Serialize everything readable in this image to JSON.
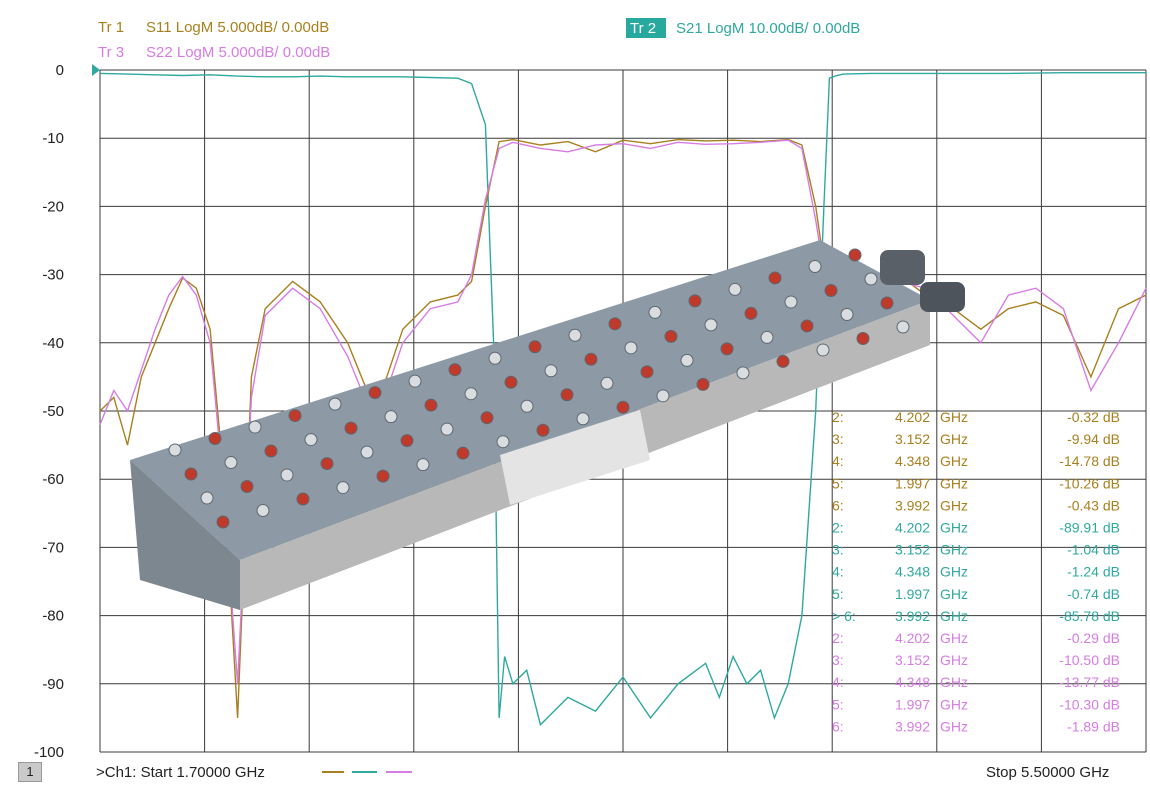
{
  "traces": [
    {
      "id": "tr1",
      "label": "Tr 1",
      "param": "S11 LogM 5.000dB/  0.00dB",
      "color": "#a8801e"
    },
    {
      "id": "tr2",
      "label": "Tr 2",
      "param": "S21 LogM 10.00dB/  0.00dB",
      "color": "#2fa8a0"
    },
    {
      "id": "tr3",
      "label": "Tr 3",
      "param": "S22 LogM 5.000dB/  0.00dB",
      "color": "#d77ce4"
    }
  ],
  "colors": {
    "s11": "#a8801e",
    "s21": "#2fa8a0",
    "s22": "#d77ce4",
    "grid": "#3a3a3a",
    "tr2_highlight": "#28a9a0"
  },
  "footer": {
    "channel_box": "1",
    "start_text": ">Ch1:  Start  1.70000 GHz",
    "stop_text": "Stop  5.50000 GHz"
  },
  "markers": [
    {
      "trace": "s11",
      "num": "2",
      "freq": "4.202",
      "unit": "GHz",
      "value": "-0.32 dB"
    },
    {
      "trace": "s11",
      "num": "3",
      "freq": "3.152",
      "unit": "GHz",
      "value": "-9.94 dB"
    },
    {
      "trace": "s11",
      "num": "4",
      "freq": "4.348",
      "unit": "GHz",
      "value": "-14.78 dB"
    },
    {
      "trace": "s11",
      "num": "5",
      "freq": "1.997",
      "unit": "GHz",
      "value": "-10.26 dB"
    },
    {
      "trace": "s11",
      "num": "6",
      "freq": "3.992",
      "unit": "GHz",
      "value": "-0.43 dB"
    },
    {
      "trace": "s21",
      "num": "2",
      "freq": "4.202",
      "unit": "GHz",
      "value": "-89.91 dB"
    },
    {
      "trace": "s21",
      "num": "3",
      "freq": "3.152",
      "unit": "GHz",
      "value": "-1.04 dB"
    },
    {
      "trace": "s21",
      "num": "4",
      "freq": "4.348",
      "unit": "GHz",
      "value": "-1.24 dB"
    },
    {
      "trace": "s21",
      "num": "5",
      "freq": "1.997",
      "unit": "GHz",
      "value": "-0.74 dB"
    },
    {
      "trace": "s21",
      "num": "6",
      "freq": "3.992",
      "unit": "GHz",
      "value": "-85.78 dB",
      "active": true
    },
    {
      "trace": "s22",
      "num": "2",
      "freq": "4.202",
      "unit": "GHz",
      "value": "-0.29 dB"
    },
    {
      "trace": "s22",
      "num": "3",
      "freq": "3.152",
      "unit": "GHz",
      "value": "-10.50 dB"
    },
    {
      "trace": "s22",
      "num": "4",
      "freq": "4.348",
      "unit": "GHz",
      "value": "-13.77 dB"
    },
    {
      "trace": "s22",
      "num": "5",
      "freq": "1.997",
      "unit": "GHz",
      "value": "-10.30 dB"
    },
    {
      "trace": "s22",
      "num": "6",
      "freq": "3.992",
      "unit": "GHz",
      "value": "-1.89 dB"
    }
  ],
  "chart_data": {
    "type": "line",
    "x_range_ghz": [
      1.7,
      5.5
    ],
    "ylim": [
      -100,
      0
    ],
    "y_ticks": [
      "0",
      "-10",
      "-20",
      "-30",
      "-40",
      "-50",
      "-60",
      "-70",
      "-80",
      "-90",
      "-100"
    ],
    "grid": true,
    "series": [
      {
        "name": "S21",
        "color": "#2fa8a0",
        "x": [
          1.7,
          1.8,
          1.9,
          2.0,
          2.1,
          2.2,
          2.3,
          2.4,
          2.5,
          2.6,
          2.7,
          2.8,
          2.9,
          3.0,
          3.05,
          3.1,
          3.13,
          3.15,
          3.17,
          3.2,
          3.25,
          3.3,
          3.4,
          3.5,
          3.6,
          3.7,
          3.8,
          3.9,
          3.95,
          4.0,
          4.05,
          4.1,
          4.15,
          4.2,
          4.25,
          4.3,
          4.33,
          4.35,
          4.37,
          4.4,
          4.5,
          4.6,
          4.8,
          5.0,
          5.2,
          5.5
        ],
        "values": [
          -0.5,
          -0.6,
          -0.7,
          -0.8,
          -0.7,
          -0.9,
          -1.0,
          -1.0,
          -0.9,
          -1.0,
          -1.0,
          -1.0,
          -1.1,
          -1.2,
          -2.0,
          -8.0,
          -40.0,
          -95.0,
          -86.0,
          -90.0,
          -88.0,
          -96.0,
          -92.0,
          -94.0,
          -89.0,
          -95.0,
          -90.0,
          -87.0,
          -92.0,
          -86.0,
          -90.0,
          -88.0,
          -95.0,
          -90.0,
          -80.0,
          -50.0,
          -20.0,
          -1.2,
          -0.9,
          -0.6,
          -0.5,
          -0.5,
          -0.5,
          -0.5,
          -0.4,
          -0.4
        ]
      },
      {
        "name": "S11",
        "color": "#a8801e",
        "x": [
          1.7,
          1.75,
          1.8,
          1.85,
          1.9,
          1.95,
          2.0,
          2.05,
          2.1,
          2.15,
          2.2,
          2.25,
          2.3,
          2.4,
          2.5,
          2.6,
          2.7,
          2.8,
          2.9,
          3.0,
          3.05,
          3.1,
          3.15,
          3.2,
          3.3,
          3.4,
          3.5,
          3.6,
          3.7,
          3.8,
          3.9,
          4.0,
          4.1,
          4.2,
          4.25,
          4.3,
          4.35,
          4.4,
          4.45,
          4.5,
          4.6,
          4.7,
          4.8,
          4.9,
          5.0,
          5.1,
          5.2,
          5.3,
          5.4,
          5.5
        ],
        "values": [
          -50.0,
          -48.0,
          -55.0,
          -45.0,
          -40.0,
          -35.0,
          -30.5,
          -32.0,
          -38.0,
          -60.0,
          -95.0,
          -45.0,
          -35.0,
          -31.0,
          -34.0,
          -40.0,
          -50.0,
          -38.0,
          -34.0,
          -33.0,
          -31.0,
          -20.0,
          -10.5,
          -10.2,
          -11.0,
          -10.5,
          -12.0,
          -10.3,
          -10.8,
          -10.2,
          -10.4,
          -10.3,
          -10.5,
          -10.2,
          -11.0,
          -20.0,
          -34.0,
          -40.0,
          -42.0,
          -33.0,
          -30.0,
          -33.0,
          -35.0,
          -38.0,
          -35.0,
          -34.0,
          -36.0,
          -45.0,
          -35.0,
          -33.0
        ]
      },
      {
        "name": "S22",
        "color": "#d77ce4",
        "x": [
          1.7,
          1.75,
          1.8,
          1.85,
          1.9,
          1.95,
          2.0,
          2.05,
          2.1,
          2.15,
          2.2,
          2.25,
          2.3,
          2.4,
          2.5,
          2.6,
          2.7,
          2.8,
          2.9,
          3.0,
          3.05,
          3.1,
          3.15,
          3.2,
          3.3,
          3.4,
          3.5,
          3.6,
          3.7,
          3.8,
          3.9,
          4.0,
          4.1,
          4.2,
          4.25,
          4.3,
          4.35,
          4.4,
          4.45,
          4.5,
          4.6,
          4.7,
          4.8,
          4.9,
          5.0,
          5.1,
          5.2,
          5.3,
          5.4,
          5.5
        ],
        "values": [
          -52.0,
          -47.0,
          -50.0,
          -44.0,
          -38.0,
          -33.0,
          -30.3,
          -33.0,
          -40.0,
          -62.0,
          -90.0,
          -48.0,
          -36.0,
          -32.0,
          -35.0,
          -42.0,
          -52.0,
          -40.0,
          -35.0,
          -34.0,
          -30.0,
          -19.0,
          -11.5,
          -10.6,
          -11.5,
          -12.0,
          -11.0,
          -10.8,
          -11.5,
          -10.6,
          -10.9,
          -10.8,
          -10.6,
          -10.3,
          -11.5,
          -22.0,
          -35.0,
          -42.0,
          -40.0,
          -32.0,
          -31.0,
          -32.0,
          -36.0,
          -40.0,
          -33.0,
          -32.0,
          -35.0,
          -47.0,
          -40.0,
          -32.0
        ]
      }
    ]
  }
}
